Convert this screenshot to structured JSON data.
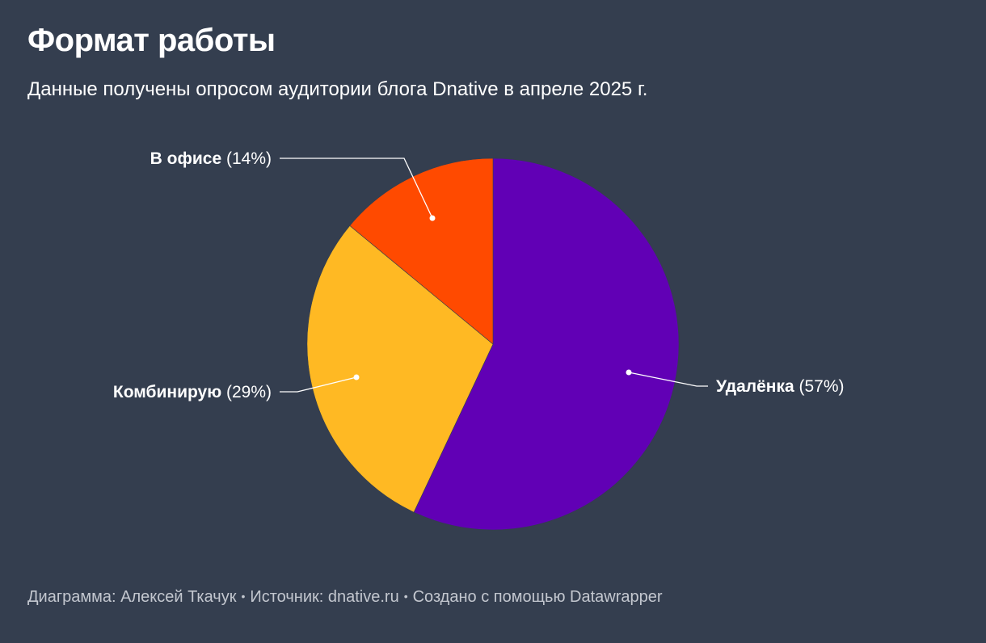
{
  "title": "Формат работы",
  "subtitle": "Данные получены опросом аудитории блога Dnative в апреле 2025 г.",
  "footer": {
    "chart_credit": "Диаграмма: Алексей Ткачук",
    "source": "Источник: dnative.ru",
    "created_with": "Создано с помощью Datawrapper",
    "separator": "•"
  },
  "colors": {
    "background": "#343e4f",
    "text": "#ffffff",
    "footer_text": "#c3c7cf",
    "leader_line": "#ffffff"
  },
  "chart_data": {
    "type": "pie",
    "categories": [
      "Удалёнка",
      "Комбинирую",
      "В офисе"
    ],
    "values": [
      57,
      29,
      14
    ],
    "value_labels": [
      "(57%)",
      "(29%)",
      "(14%)"
    ],
    "colors": [
      "#6100b5",
      "#ffb923",
      "#ff4a00"
    ],
    "start": "12 o'clock, clockwise",
    "title": "Формат работы",
    "subtitle": "Данные получены опросом аудитории блога Dnative в апреле 2025 г."
  }
}
